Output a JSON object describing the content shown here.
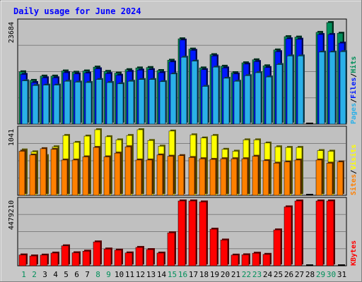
{
  "chart_data": {
    "type": "bar",
    "title": "Daily usage for June 2024",
    "categories": [
      "1",
      "2",
      "3",
      "4",
      "5",
      "6",
      "7",
      "8",
      "9",
      "10",
      "11",
      "12",
      "13",
      "14",
      "15",
      "16",
      "17",
      "18",
      "19",
      "20",
      "21",
      "22",
      "23",
      "24",
      "25",
      "26",
      "27",
      "28",
      "29",
      "30",
      "31"
    ],
    "weekend_days": [
      "1",
      "2",
      "8",
      "9",
      "15",
      "16",
      "22",
      "23",
      "29",
      "30"
    ],
    "top_panel": {
      "axis_max_label": "23684",
      "ylim": [
        0,
        23684
      ],
      "legend": [
        {
          "label": "Pages",
          "color": "#2ab0e8"
        },
        {
          "label": "Files",
          "color": "#0018ff"
        },
        {
          "label": "Hits",
          "color": "#008f5a"
        }
      ],
      "series": [
        {
          "name": "Hits",
          "values": [
            12200,
            10200,
            11200,
            11200,
            12400,
            12100,
            12400,
            13300,
            12300,
            11900,
            12700,
            13100,
            13200,
            12500,
            14900,
            19900,
            17500,
            13100,
            16200,
            13500,
            12000,
            14300,
            15000,
            13600,
            17300,
            20400,
            20300,
            0,
            21400,
            23684,
            21200
          ]
        },
        {
          "name": "Files",
          "values": [
            11600,
            9700,
            10800,
            10800,
            12000,
            11700,
            11900,
            12900,
            11800,
            11400,
            12300,
            12600,
            12700,
            12000,
            14500,
            19600,
            17200,
            12700,
            15900,
            13100,
            11700,
            14000,
            14600,
            13200,
            16900,
            19900,
            19800,
            0,
            20900,
            20900,
            18900
          ]
        },
        {
          "name": "Pages",
          "values": [
            10100,
            9000,
            9100,
            9100,
            10000,
            9800,
            9700,
            10400,
            9700,
            9400,
            10000,
            10400,
            10400,
            9900,
            11700,
            15600,
            14700,
            8800,
            13300,
            10700,
            10000,
            11300,
            12000,
            11000,
            13900,
            15900,
            15900,
            0,
            16800,
            16800,
            16900
          ]
        }
      ]
    },
    "middle_panel": {
      "axis_max_label": "1041",
      "ylim": [
        0,
        1041
      ],
      "legend": [
        {
          "label": "Sites",
          "color": "#ff8000"
        },
        {
          "label": "Visits",
          "color": "#ffff00"
        }
      ],
      "series": [
        {
          "name": "Visits",
          "values": [
            720,
            690,
            630,
            770,
            950,
            840,
            940,
            1041,
            930,
            880,
            950,
            1041,
            870,
            780,
            1020,
            0,
            960,
            910,
            950,
            730,
            700,
            880,
            880,
            830,
            770,
            760,
            760,
            0,
            710,
            700,
            0
          ]
        },
        {
          "name": "Sites",
          "values": [
            700,
            640,
            740,
            730,
            560,
            560,
            610,
            760,
            610,
            670,
            770,
            560,
            560,
            640,
            620,
            630,
            600,
            580,
            570,
            580,
            580,
            580,
            620,
            550,
            510,
            530,
            560,
            0,
            560,
            510,
            530
          ]
        }
      ]
    },
    "bottom_panel": {
      "axis_max_label": "4479210",
      "ylim": [
        0,
        4479210
      ],
      "legend": [
        {
          "label": "KBytes",
          "color": "#ff0000"
        }
      ],
      "series": [
        {
          "name": "KBytes",
          "values": [
            750000,
            680000,
            740000,
            880000,
            1380000,
            900000,
            1010000,
            1650000,
            1160000,
            1080000,
            890000,
            1270000,
            1120000,
            880000,
            2280000,
            4479210,
            4479210,
            4410000,
            2530000,
            1780000,
            740000,
            760000,
            870000,
            790000,
            2480000,
            4070000,
            4479210,
            0,
            4479210,
            4479210,
            0
          ]
        }
      ]
    }
  }
}
